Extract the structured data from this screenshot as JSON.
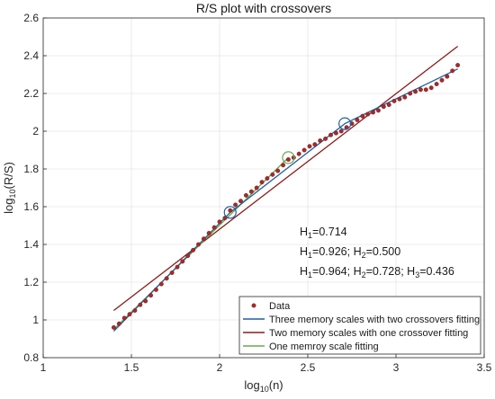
{
  "chart_data": {
    "type": "scatter",
    "title": "R/S plot with crossovers",
    "xlabel": {
      "base": "log",
      "sub": "10",
      "arg": "(n)"
    },
    "ylabel": {
      "base": "log",
      "sub": "10",
      "arg": "(R/S)"
    },
    "xlim": [
      1,
      3.5
    ],
    "ylim": [
      0.8,
      2.6
    ],
    "x_ticks": [
      1,
      1.5,
      2,
      2.5,
      3,
      3.5
    ],
    "x_tick_labels": [
      "1",
      "1.5",
      "2",
      "2.5",
      "3",
      "3.5"
    ],
    "y_ticks": [
      0.8,
      1.0,
      1.2,
      1.4,
      1.6,
      1.8,
      2.0,
      2.2,
      2.4,
      2.6
    ],
    "y_tick_labels": [
      "0.8",
      "1",
      "1.2",
      "1.4",
      "1.6",
      "1.8",
      "2",
      "2.2",
      "2.4",
      "2.6"
    ],
    "grid": true,
    "legend_position": "bottom-right",
    "series": [
      {
        "name": "Data",
        "kind": "points",
        "color": "#a52a2a",
        "x": [
          1.4,
          1.43,
          1.46,
          1.49,
          1.52,
          1.55,
          1.58,
          1.61,
          1.64,
          1.67,
          1.7,
          1.73,
          1.76,
          1.79,
          1.82,
          1.85,
          1.88,
          1.91,
          1.94,
          1.97,
          2.0,
          2.03,
          2.06,
          2.09,
          2.12,
          2.15,
          2.18,
          2.21,
          2.24,
          2.27,
          2.3,
          2.33,
          2.36,
          2.39,
          2.42,
          2.45,
          2.48,
          2.51,
          2.54,
          2.57,
          2.6,
          2.63,
          2.66,
          2.69,
          2.72,
          2.75,
          2.78,
          2.81,
          2.84,
          2.87,
          2.9,
          2.93,
          2.96,
          2.99,
          3.02,
          3.05,
          3.08,
          3.11,
          3.14,
          3.17,
          3.2,
          3.23,
          3.26,
          3.29,
          3.32,
          3.35
        ],
        "y": [
          0.96,
          0.98,
          1.01,
          1.03,
          1.05,
          1.08,
          1.1,
          1.13,
          1.16,
          1.19,
          1.22,
          1.25,
          1.28,
          1.31,
          1.34,
          1.37,
          1.4,
          1.43,
          1.46,
          1.49,
          1.52,
          1.54,
          1.58,
          1.61,
          1.63,
          1.66,
          1.68,
          1.7,
          1.73,
          1.75,
          1.77,
          1.79,
          1.82,
          1.85,
          1.86,
          1.88,
          1.9,
          1.92,
          1.93,
          1.95,
          1.96,
          1.98,
          1.99,
          2.0,
          2.02,
          2.04,
          2.06,
          2.08,
          2.09,
          2.1,
          2.11,
          2.13,
          2.14,
          2.16,
          2.17,
          2.18,
          2.2,
          2.21,
          2.22,
          2.22,
          2.23,
          2.25,
          2.27,
          2.29,
          2.32,
          2.35
        ]
      },
      {
        "name": "Three memory scales with two crossovers fitting",
        "kind": "line",
        "color": "#1f5fa0",
        "x": [
          1.4,
          2.06,
          2.71,
          3.35
        ],
        "y": [
          0.94,
          1.57,
          2.04,
          2.33
        ]
      },
      {
        "name": "Two memory scales with one crossover fitting",
        "kind": "line",
        "color": "#8b1a1a",
        "x": [
          1.4,
          3.35
        ],
        "y": [
          1.05,
          2.45
        ]
      },
      {
        "name": "One memroy scale fitting",
        "kind": "line",
        "color": "#6aa84f",
        "x": [
          1.4,
          2.39
        ],
        "y": [
          0.95,
          1.86
        ]
      }
    ],
    "crossover_markers": [
      {
        "x": 2.06,
        "y": 1.57,
        "color": "#1f5fa0"
      },
      {
        "x": 2.71,
        "y": 2.04,
        "color": "#1f5fa0"
      },
      {
        "x": 2.39,
        "y": 1.86,
        "color": "#6aa84f"
      }
    ],
    "annotations": [
      {
        "line": [
          [
            "H",
            "1",
            "=0.714"
          ]
        ]
      },
      {
        "line": [
          [
            "H",
            "1",
            "=0.926; "
          ],
          [
            "H",
            "2",
            "=0.500"
          ]
        ]
      },
      {
        "line": [
          [
            "H",
            "1",
            "=0.964; "
          ],
          [
            "H",
            "2",
            "=0.728; "
          ],
          [
            "H",
            "3",
            "=0.436"
          ]
        ]
      }
    ]
  }
}
